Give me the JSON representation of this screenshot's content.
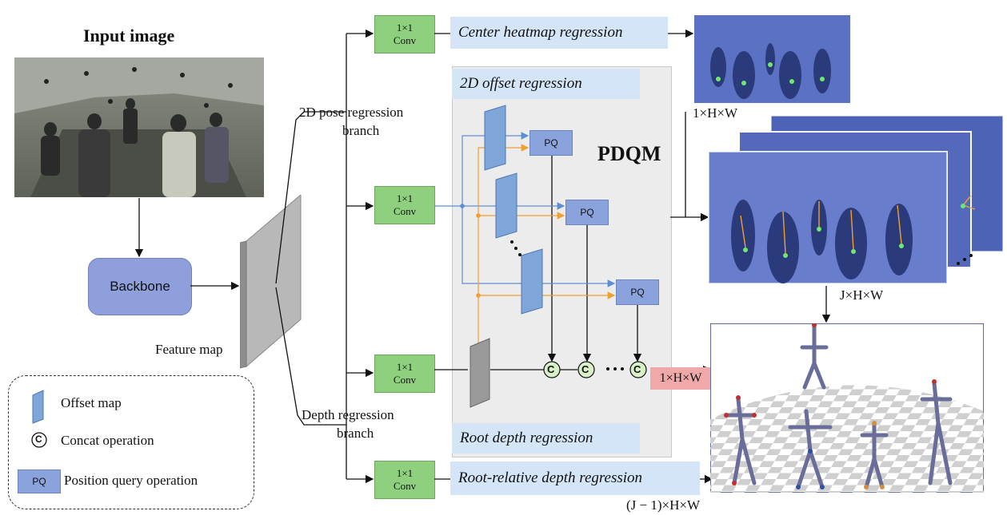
{
  "input_title": "Input image",
  "backbone_label": "Backbone",
  "feature_map_label": "Feature map",
  "pose_branch_label": [
    "2D pose regression",
    "branch"
  ],
  "depth_branch_label": [
    "Depth regression",
    "branch"
  ],
  "conv_label": [
    "1×1",
    "Conv"
  ],
  "center_heatmap_label": "Center heatmap regression",
  "offset_regression_label": "2D offset regression",
  "pdqm_label": "PDQM",
  "pq_label": "PQ",
  "root_depth_label": "Root depth regression",
  "root_relative_label": "Root-relative depth regression",
  "concat_symbol": "C",
  "dim_1hw": "1×H×W",
  "dim_jhw": "J×H×W",
  "dim_depth": "1×H×W",
  "dim_j1hw": "(J − 1)×H×W",
  "legend": {
    "offset_map": "Offset map",
    "concat": "Concat operation",
    "pq_short": "PQ",
    "position_query": "Position query operation"
  },
  "colors": {
    "conv_green": "#8fd07e",
    "band_blue": "#d3e5f6",
    "pq_blue": "#8aa3dc",
    "offset_arrow": "#f0a030",
    "feature_line": "#5b8fd4",
    "depth_highlight": "#f0a8a8"
  }
}
